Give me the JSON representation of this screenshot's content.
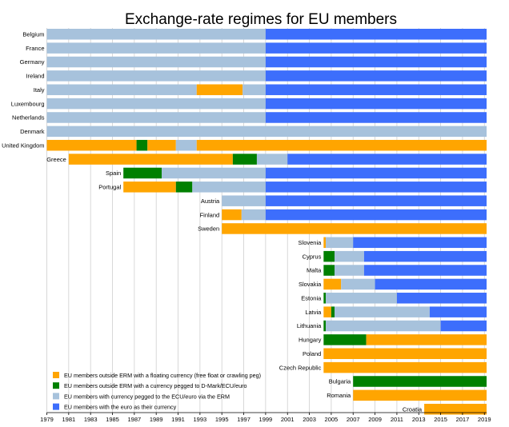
{
  "chart_data": {
    "type": "bar",
    "title": "Exchange-rate regimes for EU members",
    "xlim": [
      1979,
      2019.2
    ],
    "x_ticks": [
      "1979",
      "1981",
      "1983",
      "1985",
      "1987",
      "1989",
      "1991",
      "1993",
      "1995",
      "1997",
      "1999",
      "2001",
      "2003",
      "2005",
      "2007",
      "2009",
      "2011",
      "2013",
      "2015",
      "2017",
      "2019"
    ],
    "grid": "vertical",
    "legend_position": "bottom-left",
    "regimes": {
      "float": {
        "color": "#FFA500",
        "label": "EU members outside ERM with a floating currency (free float or crawling peg)"
      },
      "pegged": {
        "color": "#008000",
        "label": "EU members outside ERM with a currency pegged to D-Mark/ECU/euro"
      },
      "erm": {
        "color": "#A7C2DC",
        "label": "EU members with currency pegged to the ECU/euro via the ERM"
      },
      "euro": {
        "color": "#3D6EFC",
        "label": "EU members with the euro as their currency"
      }
    },
    "countries": [
      {
        "name": "Belgium",
        "segments": [
          [
            "erm",
            1979,
            1999
          ],
          [
            "euro",
            1999,
            2019.2
          ]
        ]
      },
      {
        "name": "France",
        "segments": [
          [
            "erm",
            1979,
            1999
          ],
          [
            "euro",
            1999,
            2019.2
          ]
        ]
      },
      {
        "name": "Germany",
        "segments": [
          [
            "erm",
            1979,
            1999
          ],
          [
            "euro",
            1999,
            2019.2
          ]
        ]
      },
      {
        "name": "Ireland",
        "segments": [
          [
            "erm",
            1979,
            1999
          ],
          [
            "euro",
            1999,
            2019.2
          ]
        ]
      },
      {
        "name": "Italy",
        "segments": [
          [
            "erm",
            1979,
            1992.7
          ],
          [
            "float",
            1992.7,
            1996.9
          ],
          [
            "erm",
            1996.9,
            1999
          ],
          [
            "euro",
            1999,
            2019.2
          ]
        ]
      },
      {
        "name": "Luxembourg",
        "segments": [
          [
            "erm",
            1979,
            1999
          ],
          [
            "euro",
            1999,
            2019.2
          ]
        ]
      },
      {
        "name": "Netherlands",
        "segments": [
          [
            "erm",
            1979,
            1999
          ],
          [
            "euro",
            1999,
            2019.2
          ]
        ]
      },
      {
        "name": "Denmark",
        "segments": [
          [
            "erm",
            1979,
            2019.2
          ]
        ]
      },
      {
        "name": "United Kingdom",
        "segments": [
          [
            "float",
            1979,
            1987.2
          ],
          [
            "pegged",
            1987.2,
            1988.2
          ],
          [
            "float",
            1988.2,
            1990.8
          ],
          [
            "erm",
            1990.8,
            1992.7
          ],
          [
            "float",
            1992.7,
            2019.2
          ]
        ]
      },
      {
        "name": "Greece",
        "segments": [
          [
            "float",
            1981,
            1996
          ],
          [
            "pegged",
            1996,
            1998.2
          ],
          [
            "erm",
            1998.2,
            2001
          ],
          [
            "euro",
            2001,
            2019.2
          ]
        ]
      },
      {
        "name": "Spain",
        "segments": [
          [
            "pegged",
            1986,
            1989.5
          ],
          [
            "erm",
            1989.5,
            1999
          ],
          [
            "euro",
            1999,
            2019.2
          ]
        ]
      },
      {
        "name": "Portugal",
        "segments": [
          [
            "float",
            1986,
            1990.8
          ],
          [
            "pegged",
            1990.8,
            1992.3
          ],
          [
            "erm",
            1992.3,
            1999
          ],
          [
            "euro",
            1999,
            2019.2
          ]
        ]
      },
      {
        "name": "Austria",
        "segments": [
          [
            "erm",
            1995,
            1999
          ],
          [
            "euro",
            1999,
            2019.2
          ]
        ]
      },
      {
        "name": "Finland",
        "segments": [
          [
            "float",
            1995,
            1996.8
          ],
          [
            "erm",
            1996.8,
            1999
          ],
          [
            "euro",
            1999,
            2019.2
          ]
        ]
      },
      {
        "name": "Sweden",
        "segments": [
          [
            "float",
            1995,
            2019.2
          ]
        ]
      },
      {
        "name": "Slovenia",
        "segments": [
          [
            "float",
            2004.3,
            2004.5
          ],
          [
            "erm",
            2004.5,
            2007
          ],
          [
            "euro",
            2007,
            2019.2
          ]
        ]
      },
      {
        "name": "Cyprus",
        "segments": [
          [
            "pegged",
            2004.3,
            2005.3
          ],
          [
            "erm",
            2005.3,
            2008
          ],
          [
            "euro",
            2008,
            2019.2
          ]
        ]
      },
      {
        "name": "Malta",
        "segments": [
          [
            "pegged",
            2004.3,
            2005.3
          ],
          [
            "erm",
            2005.3,
            2008
          ],
          [
            "euro",
            2008,
            2019.2
          ]
        ]
      },
      {
        "name": "Slovakia",
        "segments": [
          [
            "float",
            2004.3,
            2005.9
          ],
          [
            "erm",
            2005.9,
            2009
          ],
          [
            "euro",
            2009,
            2019.2
          ]
        ]
      },
      {
        "name": "Estonia",
        "segments": [
          [
            "pegged",
            2004.3,
            2004.5
          ],
          [
            "erm",
            2004.5,
            2011
          ],
          [
            "euro",
            2011,
            2019.2
          ]
        ]
      },
      {
        "name": "Latvia",
        "segments": [
          [
            "float",
            2004.3,
            2005
          ],
          [
            "pegged",
            2005,
            2005.3
          ],
          [
            "erm",
            2005.3,
            2014
          ],
          [
            "euro",
            2014,
            2019.2
          ]
        ]
      },
      {
        "name": "Lithuania",
        "segments": [
          [
            "pegged",
            2004.3,
            2004.5
          ],
          [
            "erm",
            2004.5,
            2015
          ],
          [
            "euro",
            2015,
            2019.2
          ]
        ]
      },
      {
        "name": "Hungary",
        "segments": [
          [
            "pegged",
            2004.3,
            2008.2
          ],
          [
            "float",
            2008.2,
            2019.2
          ]
        ]
      },
      {
        "name": "Poland",
        "segments": [
          [
            "float",
            2004.3,
            2019.2
          ]
        ]
      },
      {
        "name": "Czech Republic",
        "segments": [
          [
            "float",
            2004.3,
            2019.2
          ]
        ]
      },
      {
        "name": "Bulgaria",
        "segments": [
          [
            "pegged",
            2007,
            2019.2
          ]
        ]
      },
      {
        "name": "Romania",
        "segments": [
          [
            "float",
            2007,
            2019.2
          ]
        ]
      },
      {
        "name": "Croatia",
        "segments": [
          [
            "float",
            2013.5,
            2019.2
          ]
        ]
      }
    ]
  }
}
